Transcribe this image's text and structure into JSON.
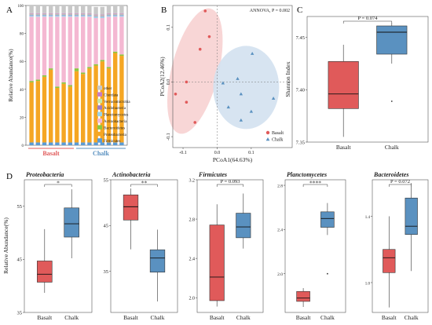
{
  "panel_letters": {
    "a": "A",
    "b": "B",
    "c": "C",
    "d": "D"
  },
  "colors": {
    "basalt": "#e05a5a",
    "chalk": "#5a91c0",
    "basalt_ellipse": "#f7d2d2",
    "chalk_ellipse": "#d3e1ef"
  },
  "chart_data": [
    {
      "panel": "A",
      "type": "bar",
      "stacked": true,
      "ylabel": "Relative Abundance(%)",
      "ylim": [
        0,
        100
      ],
      "yticks": [
        "0",
        "20",
        "40",
        "60",
        "80",
        "100"
      ],
      "groups": [
        {
          "name": "Basalt",
          "count": 7
        },
        {
          "name": "Chalk",
          "count": 8
        }
      ],
      "legend": [
        "other",
        "Chordata",
        "Verrucomicrobia",
        "Acidobacteria",
        "Planctomycetes",
        "Actinobacteria",
        "Bacteroidetes",
        "Proteobacteria",
        "Firmicutes"
      ],
      "series": [
        {
          "name": "Firmicutes",
          "color": "#5b9bd5",
          "values": [
            2,
            2,
            2,
            2,
            2,
            2,
            2,
            2,
            2,
            2,
            2,
            2,
            2,
            2,
            2
          ]
        },
        {
          "name": "Proteobacteria",
          "color": "#f5a623",
          "values": [
            43,
            44,
            47,
            52,
            39,
            42,
            40,
            51,
            49,
            53,
            55,
            58,
            53,
            64,
            62
          ]
        },
        {
          "name": "Bacteroidetes",
          "color": "#8cc63f",
          "values": [
            1,
            1,
            1,
            1,
            1,
            1,
            1,
            2,
            1,
            1,
            1,
            1,
            1,
            1,
            1
          ]
        },
        {
          "name": "Actinobacteria",
          "color": "#f4b8d2",
          "values": [
            46,
            45,
            42,
            37,
            50,
            47,
            49,
            37,
            40,
            36,
            33,
            30,
            36,
            25,
            27
          ]
        },
        {
          "name": "Planctomycetes",
          "color": "#9ad3e8",
          "values": [
            1,
            1,
            1,
            1,
            1,
            1,
            1,
            1,
            1,
            1,
            1,
            1,
            1,
            1,
            1
          ]
        },
        {
          "name": "Acidobacteria",
          "color": "#a07cbf",
          "values": [
            0.5,
            0.5,
            0.5,
            0.5,
            0.5,
            0.5,
            0.5,
            0.5,
            0.5,
            0.5,
            0.5,
            0.5,
            0.5,
            0.5,
            0.5
          ]
        },
        {
          "name": "Verrucomicrobia",
          "color": "#c9e8a5",
          "values": [
            0.5,
            0.5,
            0.5,
            0.5,
            0.5,
            0.5,
            0.5,
            0.5,
            0.5,
            0.5,
            0.5,
            0.5,
            0.5,
            0.5,
            0.5
          ]
        },
        {
          "name": "Chordata",
          "color": "#c77cc7",
          "values": [
            0.5,
            0.5,
            0.5,
            0.5,
            0.5,
            0.5,
            0.5,
            0.5,
            0.5,
            0.5,
            0.5,
            0.5,
            0.5,
            0.5,
            0.5
          ]
        },
        {
          "name": "other",
          "color": "#c8c8c8",
          "values": [
            5.5,
            5.5,
            5.5,
            5.5,
            5.5,
            5.5,
            5.5,
            5.5,
            5.5,
            5.5,
            5.5,
            5.5,
            5.5,
            5.5,
            5.5
          ]
        }
      ]
    },
    {
      "panel": "B",
      "type": "scatter",
      "title": "ANNOVA, P = 0.002",
      "xlabel": "PCoA1(64.63%)",
      "ylabel": "PCoA2(12.46%)",
      "xlim": [
        -0.13,
        0.22
      ],
      "ylim": [
        -0.12,
        0.14
      ],
      "xticks": [
        -0.1,
        0.0,
        0.1
      ],
      "xtick_labels": [
        "-0.1",
        "0.0",
        "0.1"
      ],
      "yticks": [
        -0.1,
        0.0,
        0.1
      ],
      "ytick_labels": [
        "-0.1",
        "0.0",
        "0.1"
      ],
      "legend_position": "bottom-right",
      "series": [
        {
          "name": "Basalt",
          "marker": "circle",
          "points": [
            [
              -0.035,
              0.13
            ],
            [
              -0.023,
              0.083
            ],
            [
              -0.05,
              0.06
            ],
            [
              -0.09,
              0.0
            ],
            [
              -0.122,
              -0.022
            ],
            [
              -0.09,
              -0.037
            ],
            [
              -0.065,
              -0.074
            ]
          ]
        },
        {
          "name": "Chalk",
          "marker": "triangle",
          "points": [
            [
              0.103,
              0.052
            ],
            [
              0.06,
              0.006
            ],
            [
              0.017,
              -0.002
            ],
            [
              0.07,
              -0.022
            ],
            [
              0.165,
              -0.03
            ],
            [
              0.033,
              -0.046
            ],
            [
              0.1,
              -0.054
            ],
            [
              0.07,
              -0.07
            ]
          ]
        }
      ]
    },
    {
      "panel": "C",
      "type": "boxplot",
      "ylabel": "Shannon Index",
      "ylim": [
        7.35,
        7.47
      ],
      "yticks": [
        7.35,
        7.4,
        7.45
      ],
      "ytick_labels": [
        "7.35",
        "7.40",
        "7.45"
      ],
      "annotation": "P = 0.074",
      "categories": [
        "Basalt",
        "Chalk"
      ],
      "boxes": [
        {
          "name": "Basalt",
          "whisker_low": 7.355,
          "q1": 7.382,
          "median": 7.396,
          "q3": 7.427,
          "whisker_high": 7.443,
          "outliers": []
        },
        {
          "name": "Chalk",
          "whisker_low": 7.425,
          "q1": 7.434,
          "median": 7.455,
          "q3": 7.461,
          "whisker_high": 7.464,
          "outliers": [
            7.389
          ]
        }
      ]
    },
    {
      "panel": "D1",
      "type": "boxplot",
      "title": "Proteobacteria",
      "ylabel": "Relative Abundance(%)",
      "ylim": [
        35,
        60
      ],
      "yticks": [
        35,
        45,
        55
      ],
      "ytick_labels": [
        "35",
        "45",
        "55"
      ],
      "annotation": "*",
      "categories": [
        "Basalt",
        "Chalk"
      ],
      "boxes": [
        {
          "name": "Basalt",
          "whisker_low": 38.7,
          "q1": 40.7,
          "median": 42.2,
          "q3": 44.7,
          "whisker_high": 50.7,
          "outliers": []
        },
        {
          "name": "Chalk",
          "whisker_low": 45.2,
          "q1": 49.2,
          "median": 51.7,
          "q3": 54.7,
          "whisker_high": 58.2,
          "outliers": []
        }
      ]
    },
    {
      "panel": "D2",
      "type": "boxplot",
      "title": "Actinobacteria",
      "ylim": [
        26,
        55
      ],
      "yticks": [
        35,
        45,
        55
      ],
      "ytick_labels": [
        "35",
        "45",
        "55"
      ],
      "annotation": "**",
      "categories": [
        "Basalt",
        "Chalk"
      ],
      "boxes": [
        {
          "name": "Basalt",
          "whisker_low": 39.8,
          "q1": 46.2,
          "median": 49.1,
          "q3": 51.7,
          "whisker_high": 53.1,
          "outliers": []
        },
        {
          "name": "Chalk",
          "whisker_low": 28.4,
          "q1": 34.8,
          "median": 37.9,
          "q3": 39.7,
          "whisker_high": 44.1,
          "outliers": []
        }
      ]
    },
    {
      "panel": "D3",
      "type": "boxplot",
      "title": "Firmicutes",
      "ylim": [
        1.85,
        3.2
      ],
      "yticks": [
        2.0,
        2.4,
        2.8,
        3.2
      ],
      "ytick_labels": [
        "2.0",
        "2.4",
        "2.8",
        "3.2"
      ],
      "annotation": "P = 0.093",
      "categories": [
        "Basalt",
        "Chalk"
      ],
      "boxes": [
        {
          "name": "Basalt",
          "whisker_low": 1.91,
          "q1": 1.97,
          "median": 2.21,
          "q3": 2.74,
          "whisker_high": 2.95,
          "outliers": []
        },
        {
          "name": "Chalk",
          "whisker_low": 2.5,
          "q1": 2.61,
          "median": 2.72,
          "q3": 2.86,
          "whisker_high": 3.06,
          "outliers": []
        }
      ]
    },
    {
      "panel": "D4",
      "type": "boxplot",
      "title": "Planctomycetes",
      "ylim": [
        1.65,
        2.85
      ],
      "yticks": [
        1.6,
        2.0,
        2.4,
        2.8
      ],
      "ytick_labels": [
        "1.6",
        "2.0",
        "2.4",
        "2.8"
      ],
      "annotation": "****",
      "categories": [
        "Basalt",
        "Chalk"
      ],
      "boxes": [
        {
          "name": "Basalt",
          "whisker_low": 1.7,
          "q1": 1.75,
          "median": 1.78,
          "q3": 1.84,
          "whisker_high": 1.87,
          "outliers": []
        },
        {
          "name": "Chalk",
          "whisker_low": 2.35,
          "q1": 2.42,
          "median": 2.5,
          "q3": 2.56,
          "whisker_high": 2.64,
          "outliers": [
            2.0
          ]
        }
      ]
    },
    {
      "panel": "D5",
      "type": "boxplot",
      "title": "Bacteroidetes",
      "ylim": [
        0.82,
        1.62
      ],
      "yticks": [
        1.0,
        1.4
      ],
      "ytick_labels": [
        "1.0",
        "1.4"
      ],
      "annotation": "P = 0.072",
      "categories": [
        "Basalt",
        "Chalk"
      ],
      "boxes": [
        {
          "name": "Basalt",
          "whisker_low": 0.85,
          "q1": 1.06,
          "median": 1.15,
          "q3": 1.2,
          "whisker_high": 1.4,
          "outliers": []
        },
        {
          "name": "Chalk",
          "whisker_low": 1.07,
          "q1": 1.29,
          "median": 1.34,
          "q3": 1.51,
          "whisker_high": 1.6,
          "outliers": []
        }
      ]
    }
  ]
}
